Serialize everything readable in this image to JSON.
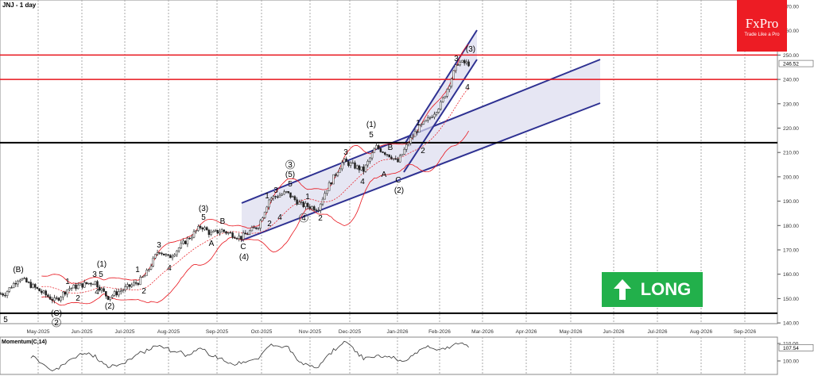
{
  "header": {
    "title": "JNJ - 1 day"
  },
  "logo": {
    "brand": "FxPro",
    "tagline": "Trade Like a Pro"
  },
  "signal": {
    "label": "LONG",
    "icon": "arrow-up-icon",
    "color": "#22b04b"
  },
  "colors": {
    "channel": "#2e3192",
    "resistance": "#e8141c",
    "support": "#000000",
    "bands": "#e8141c",
    "logo": "#ed1c24"
  },
  "chart_data": [
    {
      "type": "ohlc",
      "symbol": "JNJ",
      "timeframe": "1 day",
      "ylim": [
        138,
        272
      ],
      "y_ticks": [
        "270.00",
        "260.00",
        "250.00",
        "240.00",
        "230.00",
        "220.00",
        "210.00",
        "200.00",
        "190.00",
        "180.00",
        "170.00",
        "160.00",
        "150.00",
        "140.00"
      ],
      "x_ticks": [
        "May-2025",
        "Jun-2025",
        "Jul-2025",
        "Aug-2025",
        "Sep-2025",
        "Oct-2025",
        "Nov-2025",
        "Dec-2025",
        "Jan-2026",
        "Feb-2026",
        "Mar-2026",
        "Apr-2026",
        "May-2026",
        "Jun-2026",
        "Jul-2026",
        "Aug-2026",
        "Sep-2026"
      ],
      "last_price": "246.52",
      "price_path": [
        {
          "date": "2025-04-08",
          "close": 152
        },
        {
          "date": "2025-04-18",
          "close": 158.6
        },
        {
          "date": "2025-05-13",
          "close": 149
        },
        {
          "date": "2025-05-22",
          "close": 154
        },
        {
          "date": "2025-06-10",
          "close": 157
        },
        {
          "date": "2025-06-19",
          "close": 150.5
        },
        {
          "date": "2025-07-11",
          "close": 157
        },
        {
          "date": "2025-07-16",
          "close": 160
        },
        {
          "date": "2025-07-25",
          "close": 170
        },
        {
          "date": "2025-08-01",
          "close": 166.7
        },
        {
          "date": "2025-08-22",
          "close": 179.8
        },
        {
          "date": "2025-08-28",
          "close": 176.5
        },
        {
          "date": "2025-09-04",
          "close": 178
        },
        {
          "date": "2025-09-17",
          "close": 175
        },
        {
          "date": "2025-09-29",
          "close": 180
        },
        {
          "date": "2025-10-06",
          "close": 191
        },
        {
          "date": "2025-10-17",
          "close": 193.5
        },
        {
          "date": "2025-10-26",
          "close": 188.6
        },
        {
          "date": "2025-11-07",
          "close": 187
        },
        {
          "date": "2025-11-13",
          "close": 194.4
        },
        {
          "date": "2025-11-26",
          "close": 206.5
        },
        {
          "date": "2025-12-10",
          "close": 202.6
        },
        {
          "date": "2025-12-18",
          "close": 212.3
        },
        {
          "date": "2025-12-28",
          "close": 208.4
        },
        {
          "date": "2026-01-01",
          "close": 205.8
        },
        {
          "date": "2026-01-09",
          "close": 214
        },
        {
          "date": "2026-01-15",
          "close": 219
        },
        {
          "date": "2026-01-24",
          "close": 223.7
        },
        {
          "date": "2026-02-02",
          "close": 230
        },
        {
          "date": "2026-02-11",
          "close": 244
        },
        {
          "date": "2026-02-13",
          "close": 247
        },
        {
          "date": "2026-02-20",
          "close": 246.5
        }
      ],
      "horizontal_levels": [
        {
          "value": 250,
          "color": "#e8141c"
        },
        {
          "value": 240,
          "color": "#e8141c"
        },
        {
          "value": 214,
          "color": "#000000"
        },
        {
          "value": 144,
          "color": "#000000"
        }
      ],
      "overlays": [
        "Bollinger Bands",
        "rising channel",
        "steep rising channel"
      ],
      "wave_labels": [
        "5",
        "(B)",
        "(C)",
        "2",
        "1",
        "2",
        "3",
        "5",
        "(1)",
        "4",
        "(2)",
        "1",
        "2",
        "3",
        "4",
        "(3)",
        "5",
        "B",
        "A",
        "C",
        "(4)",
        "1",
        "3",
        "2",
        "4",
        "3",
        "(5)",
        "5",
        "1",
        "4",
        "2",
        "3",
        "4",
        "(1)",
        "5",
        "B",
        "A",
        "C",
        "(2)",
        "1",
        "2",
        "3",
        "(3)",
        "4"
      ],
      "indicator": {
        "name": "Momentum(C,14)",
        "ylim": [
          96,
          112
        ],
        "y_ticks": [
          "110.00",
          "100.00"
        ],
        "last_value": "107.54"
      },
      "grid": true
    }
  ]
}
